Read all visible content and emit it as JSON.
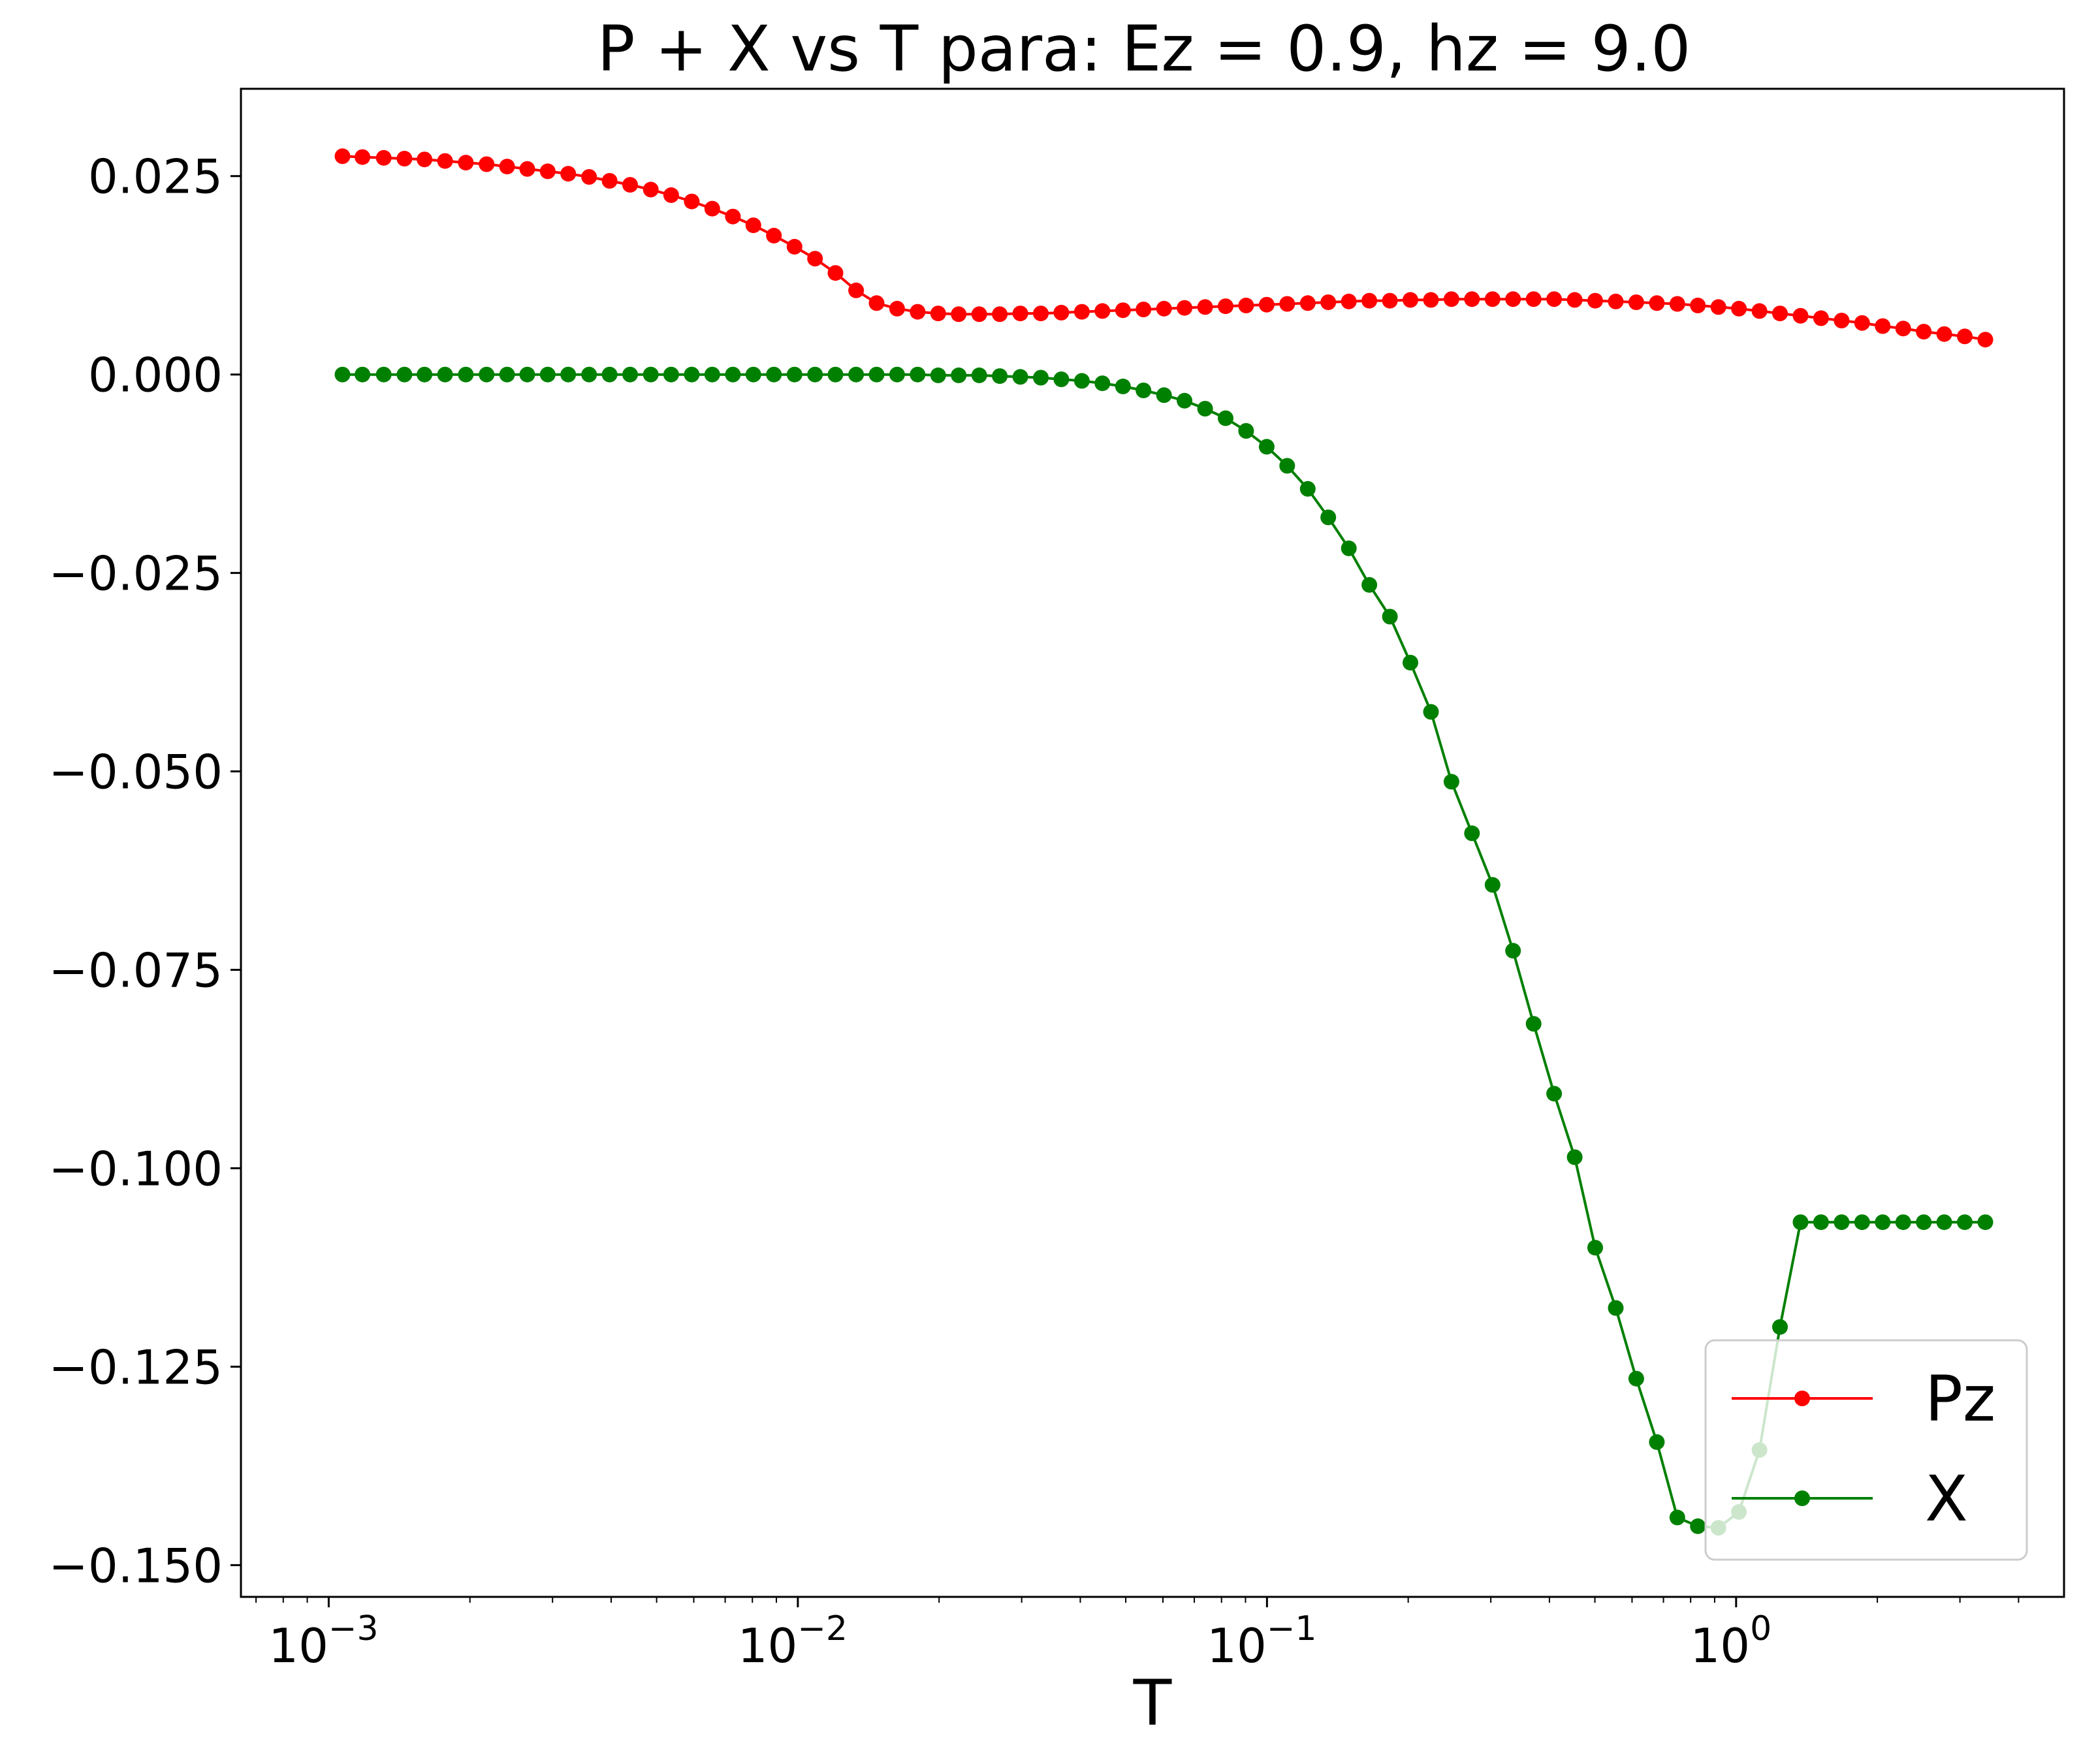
{
  "chart_data": {
    "type": "line",
    "title": "P + X vs T para: Ez = 0.9, hz = 9.0",
    "xlabel": "T",
    "ylabel": "",
    "x_scale": "log",
    "xlim": [
      0.00065,
      5.0
    ],
    "ylim": [
      -0.154,
      0.036
    ],
    "x_ticks": [
      {
        "value": 0.001,
        "base": "10",
        "exp": "−3"
      },
      {
        "value": 0.01,
        "base": "10",
        "exp": "−2"
      },
      {
        "value": 0.1,
        "base": "10",
        "exp": "−1"
      },
      {
        "value": 1,
        "base": "10",
        "exp": "0"
      }
    ],
    "y_ticks": [
      {
        "value": 0.025,
        "label": "0.025"
      },
      {
        "value": 0.0,
        "label": "0.000"
      },
      {
        "value": -0.025,
        "label": "−0.025"
      },
      {
        "value": -0.05,
        "label": "−0.050"
      },
      {
        "value": -0.075,
        "label": "−0.075"
      },
      {
        "value": -0.1,
        "label": "−0.100"
      },
      {
        "value": -0.125,
        "label": "−0.125"
      },
      {
        "value": -0.15,
        "label": "−0.150"
      }
    ],
    "grid": false,
    "legend_position": "lower-right",
    "series": [
      {
        "name": "Pz",
        "color": "#ff0000",
        "x": [
          0.00107,
          0.00118,
          0.00131,
          0.00145,
          0.0016,
          0.00177,
          0.00196,
          0.00217,
          0.0024,
          0.00265,
          0.00293,
          0.00324,
          0.00359,
          0.00397,
          0.00439,
          0.00486,
          0.00537,
          0.00594,
          0.00657,
          0.00727,
          0.00804,
          0.00889,
          0.00984,
          0.01088,
          0.01203,
          0.01331,
          0.01472,
          0.01628,
          0.018,
          0.01991,
          0.02202,
          0.02436,
          0.02694,
          0.0298,
          0.03296,
          0.03645,
          0.04031,
          0.04459,
          0.04932,
          0.05455,
          0.06033,
          0.06673,
          0.0738,
          0.08163,
          0.09028,
          0.09985,
          0.11044,
          0.12215,
          0.1351,
          0.14943,
          0.16527,
          0.1828,
          0.20218,
          0.22362,
          0.24733,
          0.27355,
          0.30256,
          0.33464,
          0.37012,
          0.40937,
          0.45277,
          0.50078,
          0.55388,
          0.61261,
          0.67757,
          0.74941,
          0.82887,
          0.91676,
          1.01396,
          1.12148,
          1.24039,
          1.37191,
          1.51738,
          1.67827,
          1.85622,
          2.05305,
          2.27074,
          2.51151,
          2.77782,
          3.07236,
          3.39813
        ],
        "y": [
          0.0275,
          0.0274,
          0.0273,
          0.0272,
          0.0271,
          0.0269,
          0.0267,
          0.0265,
          0.0262,
          0.0259,
          0.0256,
          0.0253,
          0.0249,
          0.0244,
          0.0239,
          0.0233,
          0.0226,
          0.0218,
          0.0209,
          0.0199,
          0.0188,
          0.0175,
          0.0161,
          0.0146,
          0.0128,
          0.0106,
          0.009,
          0.0083,
          0.0079,
          0.0077,
          0.0076,
          0.0076,
          0.0076,
          0.0077,
          0.0077,
          0.0078,
          0.0079,
          0.008,
          0.0081,
          0.0082,
          0.0083,
          0.0084,
          0.0085,
          0.0086,
          0.0087,
          0.0088,
          0.0089,
          0.009,
          0.0091,
          0.0092,
          0.0093,
          0.0093,
          0.0094,
          0.0094,
          0.0095,
          0.0095,
          0.0095,
          0.0095,
          0.0095,
          0.0095,
          0.0094,
          0.0093,
          0.0092,
          0.0091,
          0.009,
          0.0089,
          0.0087,
          0.0085,
          0.0083,
          0.008,
          0.0077,
          0.0074,
          0.0071,
          0.0068,
          0.0065,
          0.0061,
          0.0058,
          0.0054,
          0.0051,
          0.0048,
          0.0044
        ]
      },
      {
        "name": "X",
        "color": "#008000",
        "x": [
          0.00107,
          0.00118,
          0.00131,
          0.00145,
          0.0016,
          0.00177,
          0.00196,
          0.00217,
          0.0024,
          0.00265,
          0.00293,
          0.00324,
          0.00359,
          0.00397,
          0.00439,
          0.00486,
          0.00537,
          0.00594,
          0.00657,
          0.00727,
          0.00804,
          0.00889,
          0.00984,
          0.01088,
          0.01203,
          0.01331,
          0.01472,
          0.01628,
          0.018,
          0.01991,
          0.02202,
          0.02436,
          0.02694,
          0.0298,
          0.03296,
          0.03645,
          0.04031,
          0.04459,
          0.04932,
          0.05455,
          0.06033,
          0.06673,
          0.0738,
          0.08163,
          0.09028,
          0.09985,
          0.11044,
          0.12215,
          0.1351,
          0.14943,
          0.16527,
          0.1828,
          0.20218,
          0.22362,
          0.24733,
          0.27355,
          0.30256,
          0.33464,
          0.37012,
          0.40937,
          0.45277,
          0.50078,
          0.55388,
          0.61261,
          0.67757,
          0.74941,
          0.82887,
          0.91676,
          1.01396,
          1.12148,
          1.24039,
          1.37191,
          1.51738,
          1.67827,
          1.85622,
          2.05305,
          2.27074,
          2.51151,
          2.77782,
          3.07236,
          3.39813
        ],
        "y": [
          0.0,
          0.0,
          0.0,
          0.0,
          0.0,
          0.0,
          0.0,
          0.0,
          0.0,
          0.0,
          0.0,
          0.0,
          0.0,
          0.0,
          0.0,
          0.0,
          0.0,
          0.0,
          0.0,
          0.0,
          0.0,
          0.0,
          0.0,
          0.0,
          0.0,
          0.0,
          0.0,
          0.0,
          0.0,
          -0.0001,
          -0.0001,
          -0.0001,
          -0.0002,
          -0.0003,
          -0.0004,
          -0.0006,
          -0.0008,
          -0.0011,
          -0.0015,
          -0.002,
          -0.0026,
          -0.0033,
          -0.0043,
          -0.0055,
          -0.0071,
          -0.0091,
          -0.0115,
          -0.0144,
          -0.018,
          -0.0219,
          -0.0265,
          -0.0305,
          -0.0363,
          -0.0425,
          -0.0513,
          -0.0578,
          -0.0643,
          -0.0726,
          -0.0818,
          -0.0906,
          -0.0986,
          -0.11,
          -0.1176,
          -0.1265,
          -0.1345,
          -0.144,
          -0.1451,
          -0.1453,
          -0.1433,
          -0.1355,
          -0.12,
          -0.1068,
          -0.1068,
          -0.1068,
          -0.1068,
          -0.1068,
          -0.1068,
          -0.1068,
          -0.1068,
          -0.1068,
          -0.1068
        ]
      }
    ]
  }
}
